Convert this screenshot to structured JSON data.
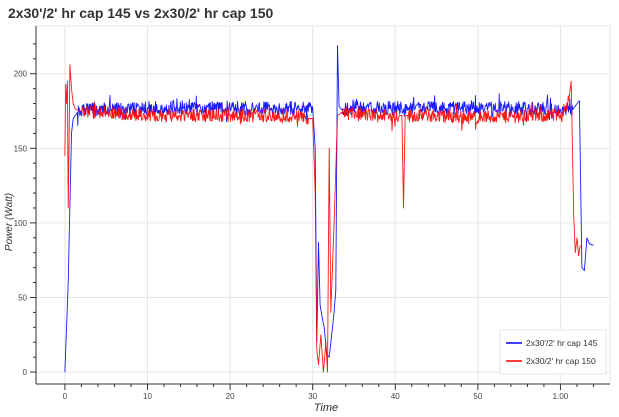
{
  "chart_data": {
    "type": "line",
    "title": "2x30'/2' hr cap 145 vs 2x30/2' hr cap 150",
    "xlabel": "Time",
    "ylabel": "Power (Watt)",
    "xlim": [
      -3.5,
      66
    ],
    "ylim": [
      -8,
      232
    ],
    "x_ticks": [
      0,
      10,
      20,
      30,
      40,
      50,
      60
    ],
    "x_tick_labels": [
      "0",
      "10",
      "20",
      "30",
      "40",
      "50",
      "1:00"
    ],
    "y_ticks": [
      0,
      50,
      100,
      150,
      200
    ],
    "y_tick_labels": [
      "0",
      "50",
      "100",
      "150",
      "200"
    ],
    "grid": true,
    "legend_position": "bottom-right",
    "x_unit_note": "minutes",
    "series": [
      {
        "name": "2x30'/2' hr cap 145",
        "color": "#0000ff",
        "x": [
          0,
          0.4,
          0.8,
          1.0,
          1.5,
          3,
          6,
          10,
          15,
          20,
          25,
          28,
          30.0,
          30.3,
          30.5,
          30.7,
          30.9,
          31.1,
          31.4,
          31.7,
          32.0,
          32.3,
          32.6,
          32.8,
          33.0,
          33.2,
          33.5,
          35,
          40,
          45,
          50,
          55,
          60,
          61.5,
          62.0,
          62.3,
          62.6,
          62.9,
          63.2,
          63.5,
          64.0
        ],
        "y": [
          0,
          60,
          160,
          170,
          174,
          176,
          176,
          177,
          177,
          177,
          177,
          177,
          177,
          150,
          20,
          87,
          45,
          38,
          30,
          12,
          10,
          25,
          40,
          55,
          219,
          178,
          176,
          177,
          177,
          177,
          177,
          177,
          176,
          176,
          180,
          182,
          70,
          68,
          90,
          86,
          85
        ]
      },
      {
        "name": "2x30/2' hr cap 150",
        "color": "#ff0000",
        "x": [
          0,
          0.1,
          0.2,
          0.3,
          0.4,
          0.5,
          0.6,
          0.8,
          1.0,
          1.3,
          2,
          4,
          8,
          12,
          16,
          20,
          24,
          28,
          29.5,
          30.0,
          30.3,
          30.5,
          30.7,
          31.0,
          31.3,
          31.6,
          31.8,
          32.0,
          32.2,
          32.6,
          33.0,
          33.5,
          35,
          38,
          40.5,
          40.8,
          41.0,
          41.2,
          41.5,
          44,
          48,
          52,
          56,
          60,
          61.0,
          61.3,
          61.6,
          61.8,
          62.0,
          62.2,
          62.4
        ],
        "y": [
          145,
          193,
          180,
          195,
          110,
          150,
          206,
          190,
          180,
          176,
          175,
          174,
          173,
          172,
          172,
          172,
          172,
          171,
          170,
          170,
          120,
          15,
          5,
          25,
          0,
          20,
          0,
          150,
          40,
          100,
          172,
          174,
          173,
          172,
          172,
          172,
          110,
          172,
          172,
          172,
          171,
          171,
          172,
          172,
          182,
          195,
          105,
          80,
          90,
          78,
          85
        ]
      }
    ]
  }
}
